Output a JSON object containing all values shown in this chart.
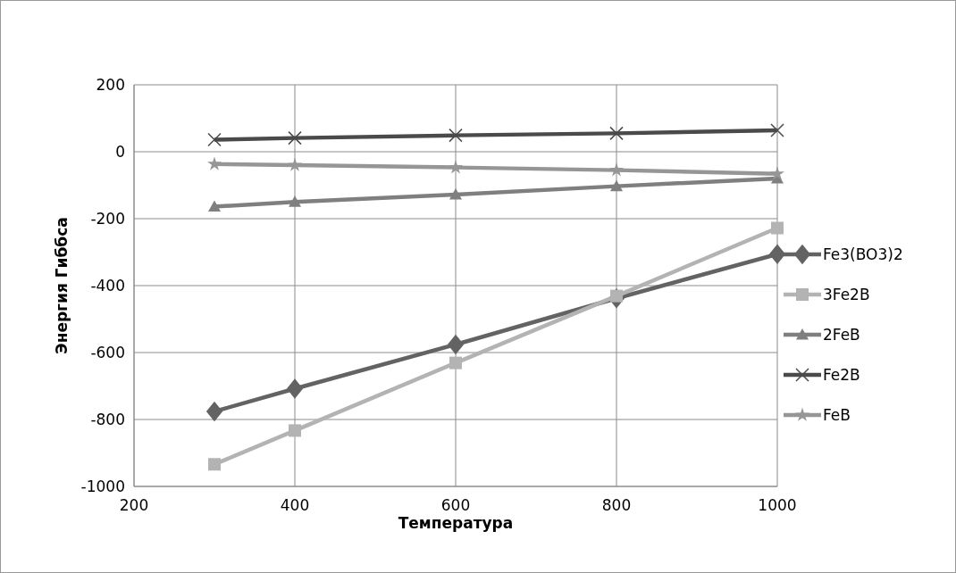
{
  "chart_data": {
    "type": "line",
    "xlabel": "Температура",
    "ylabel": "Энергия Гиббса",
    "x": [
      300,
      400,
      600,
      800,
      1000
    ],
    "xlim": [
      200,
      1000
    ],
    "xticks": [
      200,
      400,
      600,
      800,
      1000
    ],
    "ylim": [
      -1000,
      200
    ],
    "yticks": [
      -1000,
      -800,
      -600,
      -400,
      -200,
      0,
      200
    ],
    "grid": true,
    "legend": "right",
    "series": [
      {
        "name": "Fe3(BO3)2",
        "color": "#636363",
        "marker": "diamond",
        "values": [
          -776,
          -708,
          -576,
          -438,
          -306
        ]
      },
      {
        "name": "3Fe2B",
        "color": "#b3b3b3",
        "marker": "square",
        "values": [
          -934,
          -833,
          -631,
          -431,
          -228
        ]
      },
      {
        "name": "2FeB",
        "color": "#7f7f7f",
        "marker": "triangle",
        "values": [
          -164,
          -150,
          -128,
          -103,
          -80
        ]
      },
      {
        "name": "Fe2B",
        "color": "#4a4a4a",
        "marker": "cross",
        "values": [
          36,
          41,
          49,
          55,
          64
        ]
      },
      {
        "name": "FeB",
        "color": "#969696",
        "marker": "star",
        "values": [
          -37,
          -40,
          -47,
          -55,
          -66
        ]
      }
    ]
  }
}
